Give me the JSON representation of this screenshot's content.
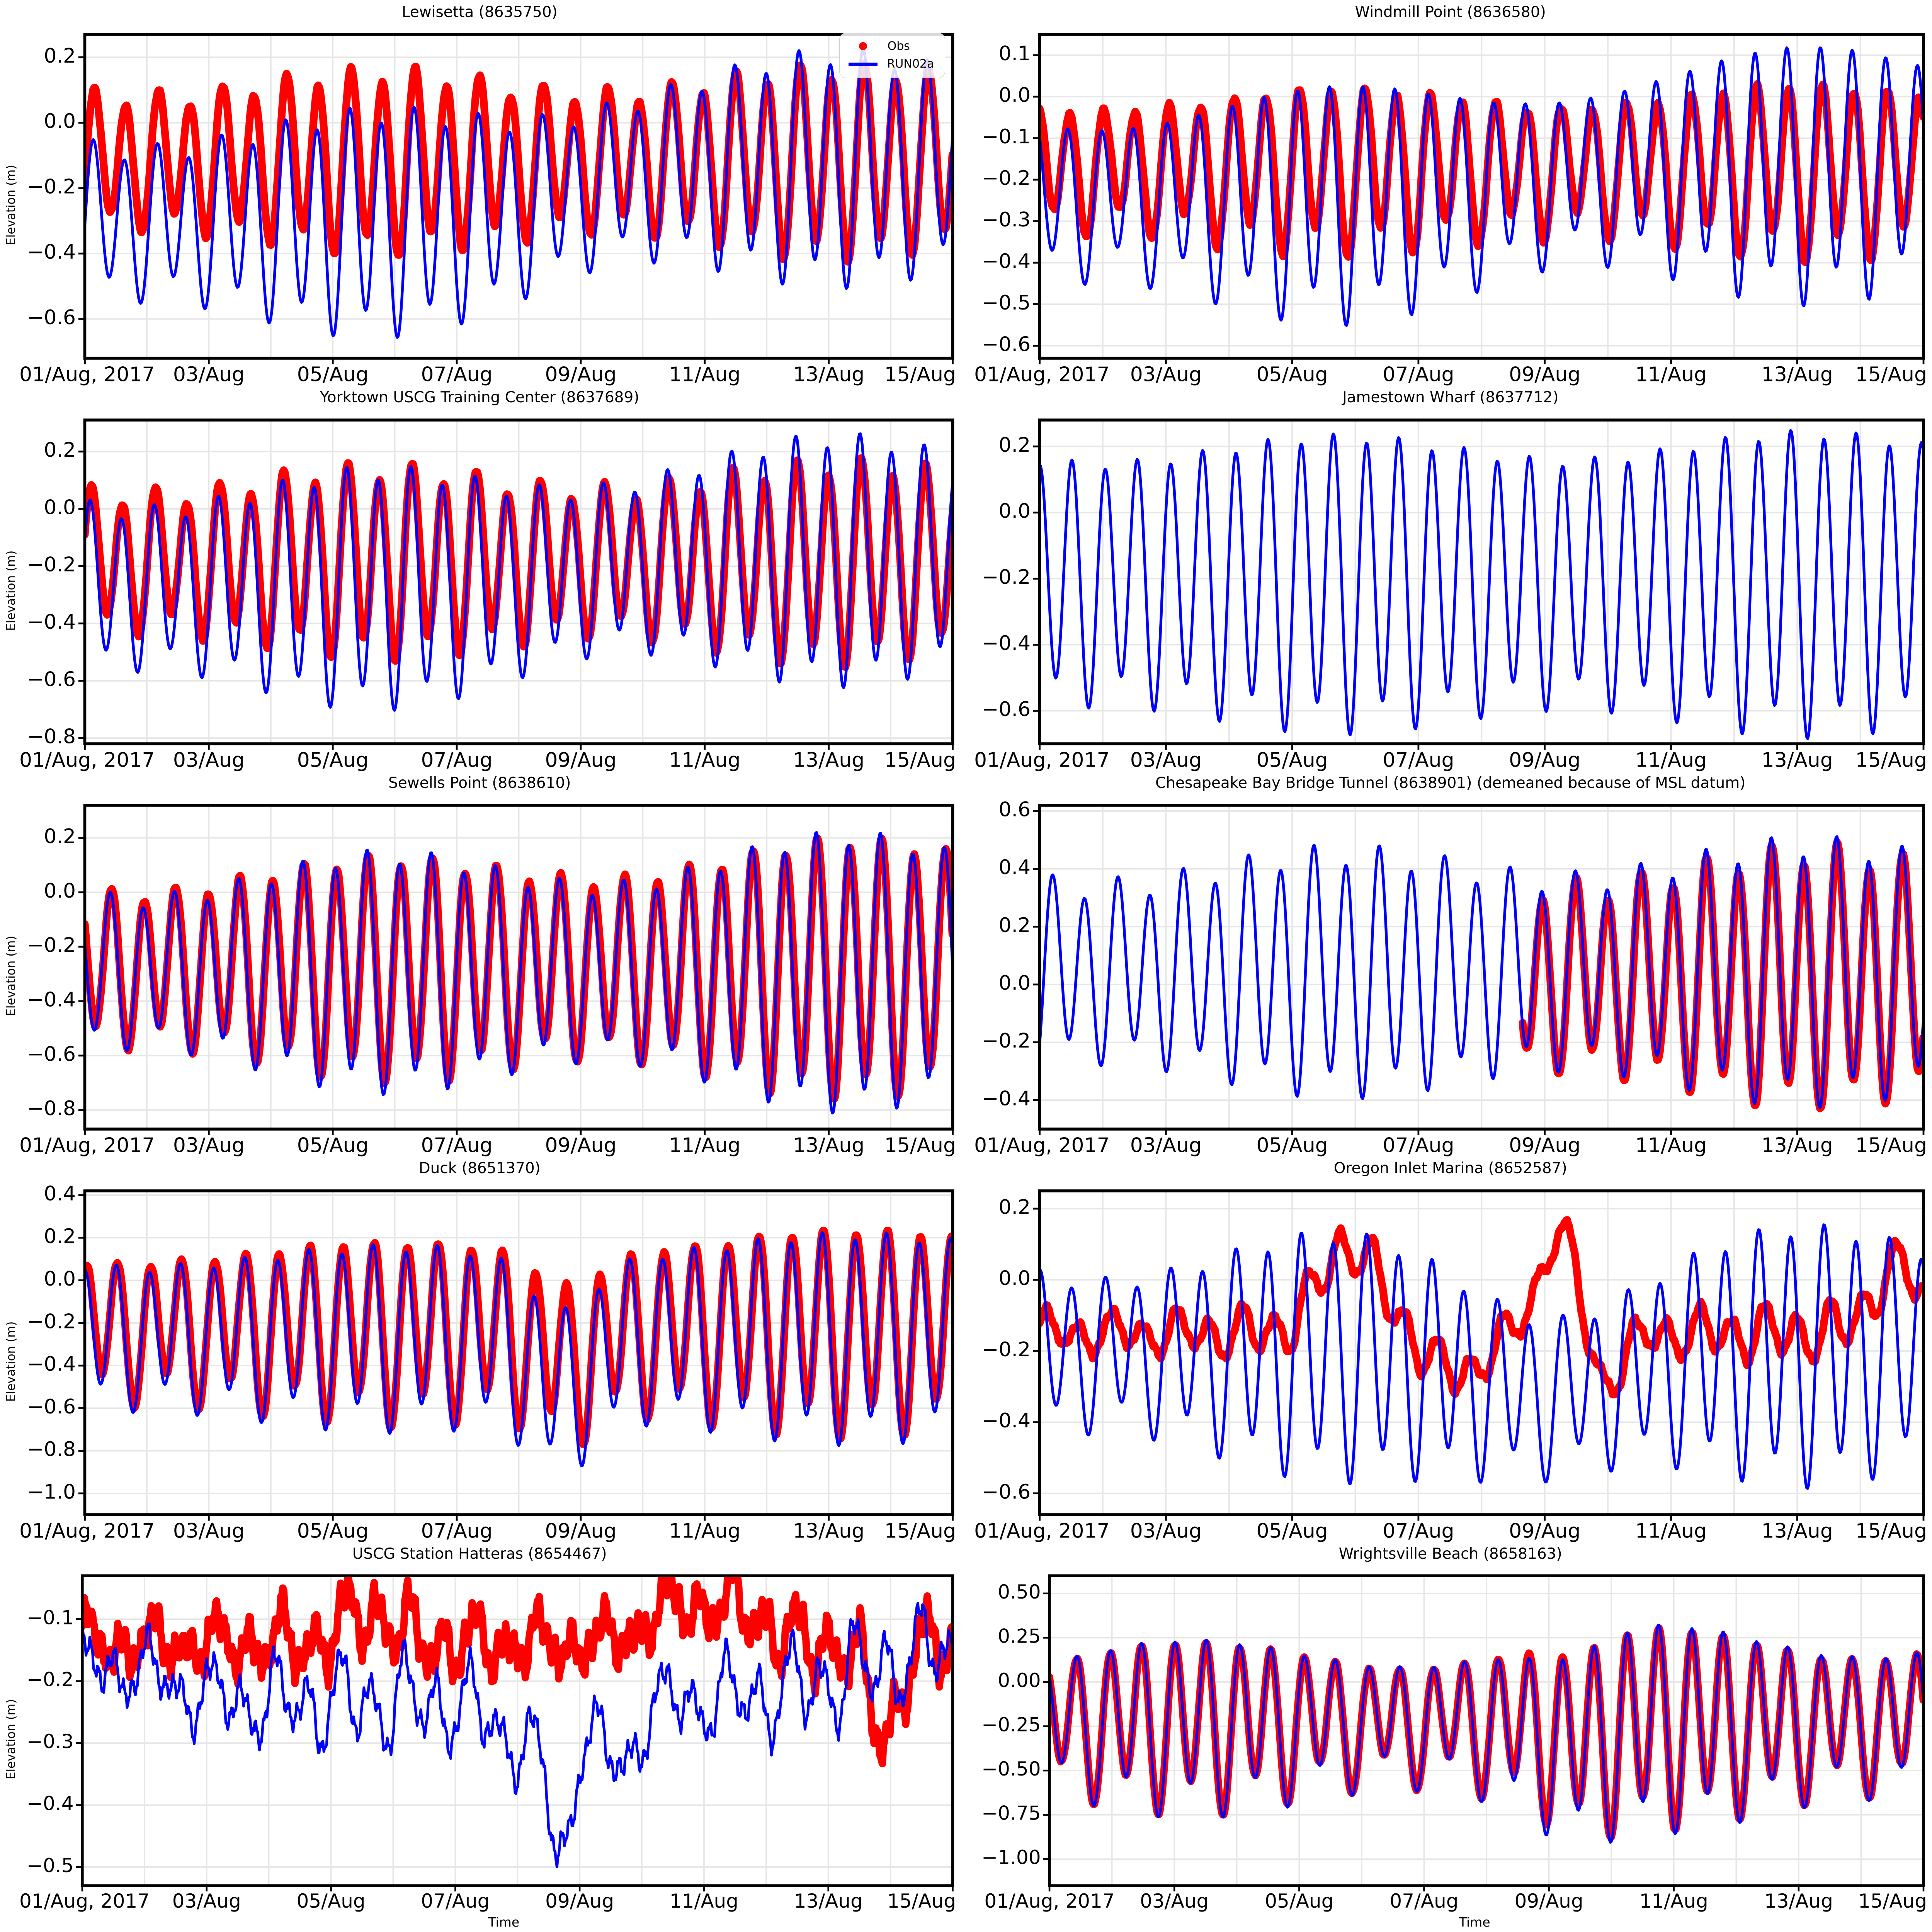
{
  "page": {
    "background": "#ffffff"
  },
  "legend": {
    "obs_label": "Obs",
    "model_label": "RUN02a",
    "obs_color": "#ff0000",
    "model_color": "#0000ff"
  },
  "axes": {
    "x_range_days": [
      0,
      14
    ],
    "x_ticks_days": [
      0,
      2,
      4,
      6,
      8,
      10,
      12,
      14
    ],
    "x_tick_labels": [
      "01/Aug, 2017",
      "03/Aug",
      "05/Aug",
      "07/Aug",
      "09/Aug",
      "11/Aug",
      "13/Aug",
      "15/Aug"
    ],
    "x_minor_grid_step_days": 1,
    "grid_color": "#e6e6e6",
    "spine_color": "#000000",
    "tick_label_color": "#000000",
    "tidal_period_days": 0.5175,
    "diurnal_period_days": 1.0351,
    "springneap_period_days": 7.4
  },
  "chart_data": [
    {
      "type": "line",
      "title": "Lewisetta (8635750)",
      "station_id": "8635750",
      "ylabel": "Elevation (m)",
      "xlabel": "",
      "ylim": [
        -0.72,
        0.27
      ],
      "yticks": [
        0.2,
        0.0,
        -0.2,
        -0.4,
        -0.6
      ],
      "ytick_decimals": 1,
      "show_legend": true,
      "series": [
        {
          "name": "Obs",
          "color": "#ff0000",
          "style": "dots",
          "params": {
            "mean": -0.115,
            "amp": 0.22,
            "amp_mod": 0.15,
            "amp_phase": 4.7,
            "amp_growth": 0.1,
            "diurnal": 0.04,
            "dphase": 0.3,
            "phase": 0.15,
            "noise": 0.004
          }
        },
        {
          "name": "RUN02a",
          "color": "#0000ff",
          "style": "line",
          "params": {
            "mean": -0.3,
            "mean_shift": 0.17,
            "shift_day": 7.8,
            "shift_width": 0.8,
            "amp": 0.26,
            "amp_mod": 0.2,
            "amp_phase": 4.7,
            "amp_growth": 0.08,
            "diurnal": 0.05,
            "dphase": 0.3,
            "phase": 0.13
          }
        }
      ]
    },
    {
      "type": "line",
      "title": "Windmill Point (8636580)",
      "station_id": "8636580",
      "ylabel": "",
      "xlabel": "",
      "ylim": [
        -0.63,
        0.15
      ],
      "yticks": [
        0.1,
        0.0,
        -0.1,
        -0.2,
        -0.3,
        -0.4,
        -0.5,
        -0.6
      ],
      "ytick_decimals": 1,
      "show_legend": false,
      "series": [
        {
          "name": "Obs",
          "color": "#ff0000",
          "style": "dots",
          "params": {
            "mean": -0.17,
            "amp": 0.155,
            "amp_mod": 0.15,
            "amp_phase": 4.7,
            "amp_growth": 0.1,
            "diurnal": 0.035,
            "dphase": 0.2,
            "phase": -0.03,
            "noise": 0.004
          }
        },
        {
          "name": "RUN02a",
          "color": "#0000ff",
          "style": "line",
          "params": {
            "mean": -0.245,
            "mean_shift": 0.075,
            "shift_day": 7.5,
            "shift_width": 0.9,
            "amp": 0.205,
            "amp_mod": 0.22,
            "amp_phase": 4.7,
            "amp_growth": 0.18,
            "diurnal": 0.045,
            "dphase": 0.2,
            "phase": -0.06
          }
        }
      ]
    },
    {
      "type": "line",
      "title": "Yorktown USCG Training Center (8637689)",
      "station_id": "8637689",
      "ylabel": "Elevation (m)",
      "xlabel": "",
      "ylim": [
        -0.82,
        0.31
      ],
      "yticks": [
        0.2,
        0.0,
        -0.2,
        -0.4,
        -0.6,
        -0.8
      ],
      "ytick_decimals": 1,
      "show_legend": false,
      "series": [
        {
          "name": "Obs",
          "color": "#ff0000",
          "style": "dots",
          "params": {
            "mean": -0.18,
            "amp": 0.26,
            "amp_mod": 0.15,
            "amp_phase": 4.7,
            "amp_growth": 0.12,
            "diurnal": 0.05,
            "dphase": 0.25,
            "phase": 0.1,
            "noise": 0.004
          }
        },
        {
          "name": "RUN02a",
          "color": "#0000ff",
          "style": "line",
          "params": {
            "mean": -0.27,
            "mean_shift": 0.1,
            "shift_day": 7.8,
            "shift_width": 0.8,
            "amp": 0.32,
            "amp_mod": 0.2,
            "amp_phase": 4.7,
            "amp_growth": 0.08,
            "diurnal": 0.05,
            "dphase": 0.25,
            "phase": 0.08
          }
        }
      ]
    },
    {
      "type": "line",
      "title": "Jamestown Wharf (8637712)",
      "station_id": "8637712",
      "ylabel": "",
      "xlabel": "",
      "ylim": [
        -0.7,
        0.28
      ],
      "yticks": [
        0.2,
        0.0,
        -0.2,
        -0.4,
        -0.6
      ],
      "ytick_decimals": 1,
      "show_legend": false,
      "series": [
        {
          "name": "RUN02a",
          "color": "#0000ff",
          "style": "line",
          "params": {
            "mean": -0.2,
            "amp": 0.38,
            "amp_mod": 0.1,
            "amp_phase": 4.7,
            "amp_growth": 0.05,
            "diurnal": 0.05,
            "dphase": 0.3,
            "phase": 0.0
          }
        }
      ]
    },
    {
      "type": "line",
      "title": "Sewells Point (8638610)",
      "station_id": "8638610",
      "ylabel": "Elevation (m)",
      "xlabel": "",
      "ylim": [
        -0.87,
        0.32
      ],
      "yticks": [
        0.2,
        0.0,
        -0.2,
        -0.4,
        -0.6,
        -0.8
      ],
      "ytick_decimals": 1,
      "show_legend": false,
      "series": [
        {
          "name": "Obs",
          "color": "#ff0000",
          "style": "dots",
          "params": {
            "mean": -0.27,
            "amp": 0.3,
            "amp_mod": 0.15,
            "amp_phase": 4.7,
            "amp_growth": 0.35,
            "diurnal": 0.05,
            "dphase": 0.25,
            "phase": -0.08,
            "noise": 0.004
          }
        },
        {
          "name": "RUN02a",
          "color": "#0000ff",
          "style": "line",
          "params": {
            "mean": -0.285,
            "amp": 0.31,
            "amp_mod": 0.2,
            "amp_phase": 4.7,
            "amp_growth": 0.35,
            "diurnal": 0.05,
            "dphase": 0.25,
            "phase": -0.1
          }
        }
      ]
    },
    {
      "type": "line",
      "title": "Chesapeake Bay Bridge Tunnel (8638901) (demeaned because of MSL datum)",
      "station_id": "8638901",
      "ylabel": "",
      "xlabel": "",
      "ylim": [
        -0.5,
        0.62
      ],
      "yticks": [
        0.6,
        0.4,
        0.2,
        0.0,
        -0.2,
        -0.4
      ],
      "ytick_decimals": 1,
      "show_legend": false,
      "series": [
        {
          "name": "Obs",
          "color": "#ff0000",
          "style": "dots",
          "params": {
            "mean": 0.03,
            "amp": 0.31,
            "amp_mod": 0.15,
            "amp_phase": 4.7,
            "amp_growth": 0.2,
            "diurnal": 0.06,
            "dphase": 0.35,
            "phase": 0.21,
            "noise": 0.004,
            "start": 7.65
          }
        },
        {
          "name": "RUN02a",
          "color": "#0000ff",
          "style": "line",
          "params": {
            "mean": 0.05,
            "amp": 0.33,
            "amp_mod": 0.15,
            "amp_phase": 4.7,
            "amp_growth": 0.15,
            "diurnal": 0.06,
            "dphase": 0.35,
            "phase": 0.2
          }
        }
      ]
    },
    {
      "type": "line",
      "title": "Duck (8651370)",
      "station_id": "8651370",
      "ylabel": "Elevation (m)",
      "xlabel": "",
      "ylim": [
        -1.1,
        0.42
      ],
      "yticks": [
        0.4,
        0.2,
        0.0,
        -0.2,
        -0.4,
        -0.6,
        -0.8,
        -1.0
      ],
      "ytick_decimals": 1,
      "show_legend": false,
      "series": [
        {
          "name": "Obs",
          "color": "#ff0000",
          "style": "dots",
          "params": {
            "mean": -0.22,
            "amp": 0.32,
            "amp_mod": 0.1,
            "amp_phase": 4.7,
            "amp_growth": 0.3,
            "diurnal": 0.08,
            "dphase": 0.3,
            "phase": 0.02,
            "noise": 0.005,
            "events": [
              {
                "t": 7.8,
                "w": 0.5,
                "dy": -0.15
              }
            ]
          }
        },
        {
          "name": "RUN02a",
          "color": "#0000ff",
          "style": "line",
          "params": {
            "mean": -0.25,
            "amp": 0.33,
            "amp_mod": 0.1,
            "amp_phase": 4.7,
            "amp_growth": 0.3,
            "diurnal": 0.07,
            "dphase": 0.3,
            "phase": 0.0,
            "events": [
              {
                "t": 7.7,
                "w": 0.5,
                "dy": -0.25
              }
            ]
          }
        }
      ]
    },
    {
      "type": "line",
      "title": "Oregon Inlet Marina (8652587)",
      "station_id": "8652587",
      "ylabel": "",
      "xlabel": "",
      "ylim": [
        -0.66,
        0.25
      ],
      "yticks": [
        0.2,
        0.0,
        -0.2,
        -0.4,
        -0.6
      ],
      "ytick_decimals": 1,
      "show_legend": false,
      "series": [
        {
          "name": "Obs",
          "color": "#ff0000",
          "style": "dots",
          "params": {
            "mean": -0.15,
            "amp": 0.055,
            "amp_mod": 0.2,
            "amp_phase": 4.7,
            "diurnal": 0.025,
            "dphase": 0.2,
            "phase": 0.1,
            "noise": 0.007,
            "events": [
              {
                "t": 4.9,
                "w": 0.45,
                "dy": 0.25
              },
              {
                "t": 6.6,
                "w": 0.4,
                "dy": -0.12
              },
              {
                "t": 8.25,
                "w": 0.3,
                "dy": 0.3
              },
              {
                "t": 8.9,
                "w": 0.3,
                "dy": -0.15
              },
              {
                "t": 13.6,
                "w": 0.4,
                "dy": 0.18
              }
            ]
          }
        },
        {
          "name": "RUN02a",
          "color": "#0000ff",
          "style": "line",
          "params": {
            "mean": -0.2,
            "amp": 0.25,
            "amp_mod": 0.25,
            "amp_phase": 4.7,
            "amp_growth": 0.1,
            "diurnal": 0.05,
            "dphase": 0.2,
            "phase": 0.0,
            "events": [
              {
                "t": 8.0,
                "w": 1.2,
                "dy": -0.12
              }
            ]
          }
        }
      ]
    },
    {
      "type": "line",
      "title": "USCG Station Hatteras (8654467)",
      "station_id": "8654467",
      "ylabel": "Elevation (m)",
      "xlabel": "Time",
      "ylim": [
        -0.53,
        -0.03
      ],
      "yticks": [
        -0.1,
        -0.2,
        -0.3,
        -0.4,
        -0.5
      ],
      "ytick_decimals": 1,
      "show_legend": false,
      "series": [
        {
          "name": "Obs",
          "color": "#ff0000",
          "style": "dots",
          "params": {
            "mean": -0.14,
            "amp": 0.035,
            "amp_mod": 0.3,
            "amp_phase": 4.7,
            "diurnal": 0.02,
            "dphase": 0.1,
            "phase": 0.1,
            "noise": 0.02,
            "events": [
              {
                "t": 4.6,
                "w": 0.4,
                "dy": 0.05
              },
              {
                "t": 9.6,
                "w": 0.5,
                "dy": 0.06
              },
              {
                "t": 10.6,
                "w": 0.4,
                "dy": 0.05
              },
              {
                "t": 12.9,
                "w": 0.25,
                "dy": -0.14
              }
            ]
          }
        },
        {
          "name": "RUN02a",
          "color": "#0000ff",
          "style": "line",
          "params": {
            "mean": -0.235,
            "mean_shift": 0.1,
            "shift_day": 12.5,
            "shift_width": 0.8,
            "amp": 0.045,
            "amp_mod": 0.3,
            "amp_phase": 4.7,
            "diurnal": 0.03,
            "dphase": 0.1,
            "phase": 0.0,
            "noise": 0.016,
            "events": [
              {
                "t": 0.5,
                "w": 0.8,
                "dy": 0.06
              },
              {
                "t": 7.7,
                "w": 0.18,
                "dy": -0.2
              },
              {
                "t": 7.2,
                "w": 0.5,
                "dy": -0.07
              },
              {
                "t": 8.6,
                "w": 0.3,
                "dy": -0.1
              }
            ]
          }
        }
      ]
    },
    {
      "type": "line",
      "title": "Wrightsville Beach (8658163)",
      "station_id": "8658163",
      "ylabel": "",
      "xlabel": "Time",
      "ylim": [
        -1.15,
        0.6
      ],
      "yticks": [
        0.5,
        0.25,
        0.0,
        -0.25,
        -0.5,
        -0.75,
        -1.0
      ],
      "ytick_decimals": 2,
      "show_legend": false,
      "series": [
        {
          "name": "Obs",
          "color": "#ff0000",
          "style": "dots",
          "params": {
            "mean": -0.22,
            "amp": 0.33,
            "amp_mod": 0.25,
            "amp_phase": 9.5,
            "amp_growth": 0.38,
            "diurnal": 0.1,
            "dphase": 0.2,
            "phase": 0.45,
            "noise": 0.005,
            "events": [
              {
                "t": 8.5,
                "w": 0.5,
                "dy": -0.1
              }
            ]
          }
        },
        {
          "name": "RUN02a",
          "color": "#0000ff",
          "style": "line",
          "params": {
            "mean": -0.22,
            "amp": 0.34,
            "amp_mod": 0.25,
            "amp_phase": 9.5,
            "amp_growth": 0.4,
            "diurnal": 0.1,
            "dphase": 0.2,
            "phase": 0.45,
            "events": [
              {
                "t": 8.3,
                "w": 0.6,
                "dy": -0.12
              }
            ]
          }
        }
      ]
    }
  ]
}
